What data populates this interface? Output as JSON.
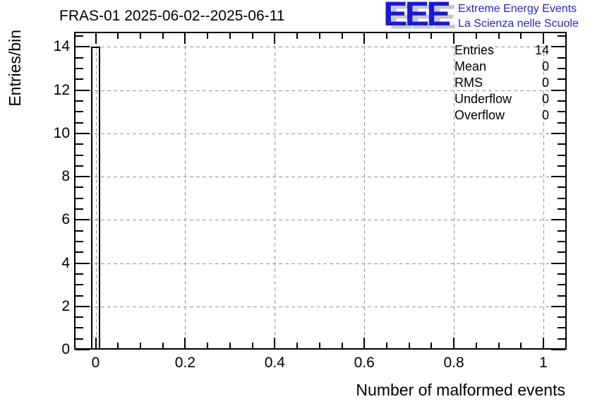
{
  "header": {
    "title": "FRAS-01 2025-06-02--2025-06-11",
    "logo": {
      "acronym": "EEE",
      "line1": "Extreme Energy Events",
      "line2": "La Scienza nelle Scuole"
    }
  },
  "axes": {
    "x_title": "Number of malformed events",
    "y_title": "Entries/bin"
  },
  "stats": {
    "rows": [
      {
        "label": "Entries",
        "value": "14"
      },
      {
        "label": "Mean",
        "value": "0"
      },
      {
        "label": "RMS",
        "value": "0"
      },
      {
        "label": "Underflow",
        "value": "0"
      },
      {
        "label": "Overflow",
        "value": "0"
      }
    ]
  },
  "colors": {
    "logo_blue": "#1818d8",
    "logo_text_blue": "#2626cc",
    "logo_shadow": "#c6c6d2",
    "grid_gray": "#949494",
    "line_black": "#000000"
  },
  "chart_data": {
    "type": "bar",
    "title": "FRAS-01 2025-06-02--2025-06-11",
    "xlabel": "Number of malformed events",
    "ylabel": "Entries/bin",
    "xlim": [
      -0.048,
      1.052
    ],
    "ylim": [
      0,
      14.7
    ],
    "x_ticks": [
      0,
      0.2,
      0.4,
      0.6,
      0.8,
      1
    ],
    "x_tick_labels": [
      "0",
      "0.2",
      "0.4",
      "0.6",
      "0.8",
      "1"
    ],
    "y_ticks": [
      0,
      2,
      4,
      6,
      8,
      10,
      12,
      14
    ],
    "y_tick_labels": [
      "0",
      "2",
      "4",
      "6",
      "8",
      "10",
      "12",
      "14"
    ],
    "x_minor_step": 0.05,
    "y_minor_step": 0.5,
    "grid": true,
    "grid_style": "dashed",
    "legend_position": "none",
    "bars": [
      {
        "x_center": 0,
        "width": 0.02,
        "height": 14
      }
    ],
    "stats": {
      "Entries": 14,
      "Mean": 0,
      "RMS": 0,
      "Underflow": 0,
      "Overflow": 0
    }
  }
}
